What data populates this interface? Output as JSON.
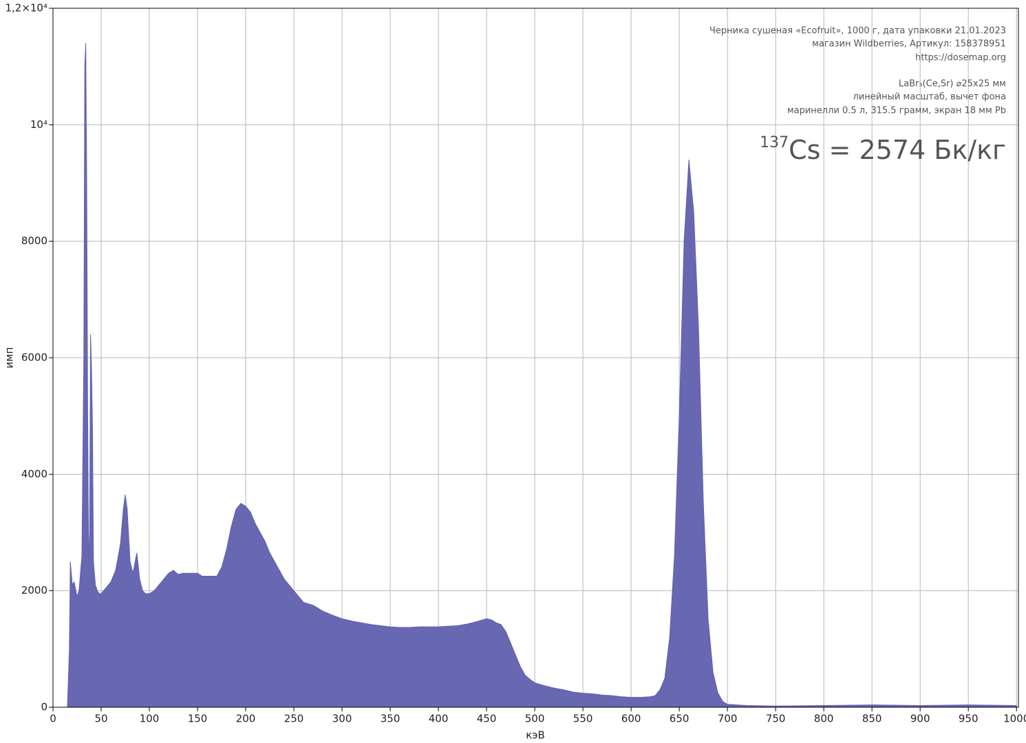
{
  "chart_data": {
    "type": "area",
    "x_label": "кэВ",
    "y_label": "имп",
    "annotations": [
      "Черника сушеная «Ecofruit», 1000 г, дата упаковки 21.01.2023",
      "магазин Wildberries, Артикул: 158378951",
      "https://dosemap.org",
      "LaBr₃(Ce,Sr) ⌀25x25 мм",
      "линейный масштаб, вычет фона",
      "маринелли 0.5 л, 315.5 грамм, экран 18 мм Pb"
    ],
    "result": {
      "mass_number": "137",
      "text": "Cs = 2574 Бк/кг"
    },
    "color": "#6262b0",
    "x": [
      15,
      17,
      18,
      20,
      22,
      25,
      27,
      30,
      32,
      33,
      34,
      35,
      36,
      37,
      38,
      39,
      40,
      41,
      42,
      44,
      46,
      48,
      50,
      55,
      60,
      65,
      70,
      73,
      75,
      77,
      80,
      83,
      87,
      90,
      93,
      96,
      100,
      105,
      110,
      115,
      120,
      125,
      130,
      135,
      140,
      145,
      150,
      155,
      160,
      165,
      170,
      175,
      180,
      185,
      190,
      195,
      200,
      205,
      210,
      215,
      220,
      225,
      230,
      235,
      240,
      245,
      250,
      255,
      260,
      270,
      280,
      290,
      300,
      310,
      320,
      330,
      340,
      350,
      360,
      370,
      380,
      390,
      400,
      410,
      420,
      430,
      440,
      450,
      455,
      460,
      465,
      470,
      475,
      480,
      485,
      490,
      495,
      500,
      510,
      520,
      530,
      540,
      550,
      560,
      570,
      580,
      590,
      600,
      610,
      620,
      625,
      630,
      635,
      640,
      645,
      650,
      655,
      660,
      665,
      670,
      675,
      680,
      685,
      690,
      695,
      700,
      720,
      750,
      800,
      850,
      900,
      950,
      1000
    ],
    "values": [
      0,
      1000,
      2500,
      2100,
      2150,
      1900,
      2000,
      2600,
      6000,
      11000,
      11400,
      9000,
      5000,
      2500,
      3000,
      6400,
      5800,
      4800,
      2500,
      2100,
      2000,
      1950,
      1950,
      2050,
      2150,
      2350,
      2800,
      3400,
      3650,
      3400,
      2500,
      2300,
      2650,
      2200,
      2000,
      1950,
      1950,
      2000,
      2100,
      2200,
      2300,
      2350,
      2280,
      2300,
      2300,
      2300,
      2300,
      2250,
      2250,
      2250,
      2250,
      2400,
      2700,
      3100,
      3400,
      3500,
      3450,
      3350,
      3150,
      3000,
      2850,
      2650,
      2500,
      2350,
      2200,
      2100,
      2000,
      1900,
      1800,
      1750,
      1650,
      1580,
      1520,
      1480,
      1450,
      1420,
      1400,
      1380,
      1370,
      1370,
      1380,
      1380,
      1380,
      1390,
      1400,
      1430,
      1470,
      1520,
      1500,
      1450,
      1420,
      1300,
      1100,
      900,
      700,
      550,
      480,
      420,
      370,
      330,
      300,
      260,
      240,
      230,
      210,
      200,
      180,
      170,
      170,
      180,
      200,
      300,
      500,
      1200,
      2600,
      5000,
      8000,
      9400,
      8500,
      6500,
      3500,
      1500,
      600,
      250,
      100,
      50,
      30,
      20,
      30,
      40,
      30,
      40,
      30
    ],
    "xlim": [
      0,
      1002
    ],
    "ylim": [
      0,
      12000
    ],
    "xticks": [
      0,
      50,
      100,
      150,
      200,
      250,
      300,
      350,
      400,
      450,
      500,
      550,
      600,
      650,
      700,
      750,
      800,
      850,
      900,
      950,
      1000
    ],
    "yticks": [
      0,
      2000,
      4000,
      6000,
      8000,
      {
        "value": 10000,
        "label": "10⁴"
      },
      {
        "value": 12000,
        "label": "1,2×10⁴"
      }
    ],
    "grid": true
  }
}
